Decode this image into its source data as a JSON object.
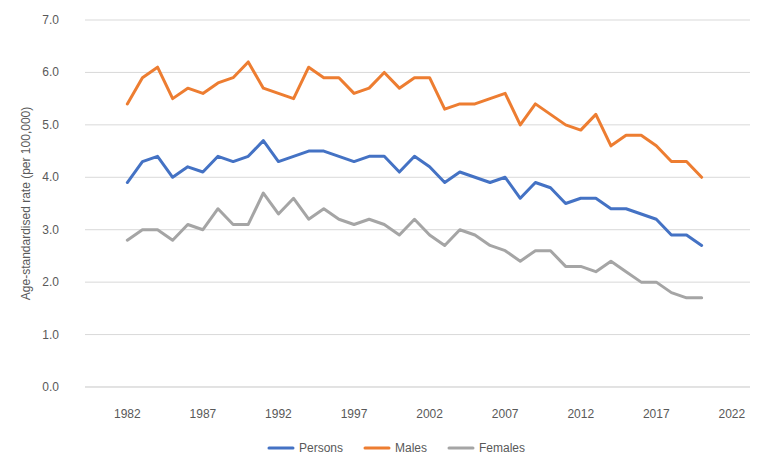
{
  "chart_data": {
    "type": "line",
    "y_label": "Age-standardised rate (per 100,000)",
    "x": [
      1982,
      1983,
      1984,
      1985,
      1986,
      1987,
      1988,
      1989,
      1990,
      1991,
      1992,
      1993,
      1994,
      1995,
      1996,
      1997,
      1998,
      1999,
      2000,
      2001,
      2002,
      2003,
      2004,
      2005,
      2006,
      2007,
      2008,
      2009,
      2010,
      2011,
      2012,
      2013,
      2014,
      2015,
      2016,
      2017,
      2018,
      2019,
      2020
    ],
    "series": [
      {
        "name": "Persons",
        "color": "#4472c4",
        "values": [
          3.9,
          4.3,
          4.4,
          4.0,
          4.2,
          4.1,
          4.4,
          4.3,
          4.4,
          4.7,
          4.3,
          4.4,
          4.5,
          4.5,
          4.4,
          4.3,
          4.4,
          4.4,
          4.1,
          4.4,
          4.2,
          3.9,
          4.1,
          4.0,
          3.9,
          4.0,
          3.6,
          3.9,
          3.8,
          3.5,
          3.6,
          3.6,
          3.4,
          3.4,
          3.3,
          3.2,
          2.9,
          2.9,
          2.7
        ]
      },
      {
        "name": "Males",
        "color": "#ed7d31",
        "values": [
          5.4,
          5.9,
          6.1,
          5.5,
          5.7,
          5.6,
          5.8,
          5.9,
          6.2,
          5.7,
          5.6,
          5.5,
          6.1,
          5.9,
          5.9,
          5.6,
          5.7,
          6.0,
          5.7,
          5.9,
          5.9,
          5.3,
          5.4,
          5.4,
          5.5,
          5.6,
          5.0,
          5.4,
          5.2,
          5.0,
          4.9,
          5.2,
          4.6,
          4.8,
          4.8,
          4.6,
          4.3,
          4.3,
          4.0
        ]
      },
      {
        "name": "Females",
        "color": "#a5a5a5",
        "values": [
          2.8,
          3.0,
          3.0,
          2.8,
          3.1,
          3.0,
          3.4,
          3.1,
          3.1,
          3.7,
          3.3,
          3.6,
          3.2,
          3.4,
          3.2,
          3.1,
          3.2,
          3.1,
          2.9,
          3.2,
          2.9,
          2.7,
          3.0,
          2.9,
          2.7,
          2.6,
          2.4,
          2.6,
          2.6,
          2.3,
          2.3,
          2.2,
          2.4,
          2.2,
          2.0,
          2.0,
          1.8,
          1.7,
          1.7
        ]
      }
    ],
    "xlim": [
      1979.2,
      2023.2
    ],
    "xticks": [
      1982,
      1987,
      1992,
      1997,
      2002,
      2007,
      2012,
      2017,
      2022
    ],
    "ylim": [
      0,
      7
    ],
    "yticks": [
      {
        "value": 0,
        "label": "0.0"
      },
      {
        "value": 1,
        "label": "1.0"
      },
      {
        "value": 2,
        "label": "2.0"
      },
      {
        "value": 3,
        "label": "3.0"
      },
      {
        "value": 4,
        "label": "4.0"
      },
      {
        "value": 5,
        "label": "5.0"
      },
      {
        "value": 6,
        "label": "6.0"
      },
      {
        "value": 7,
        "label": "7.0"
      }
    ],
    "grid": true,
    "legend": "bottom"
  }
}
